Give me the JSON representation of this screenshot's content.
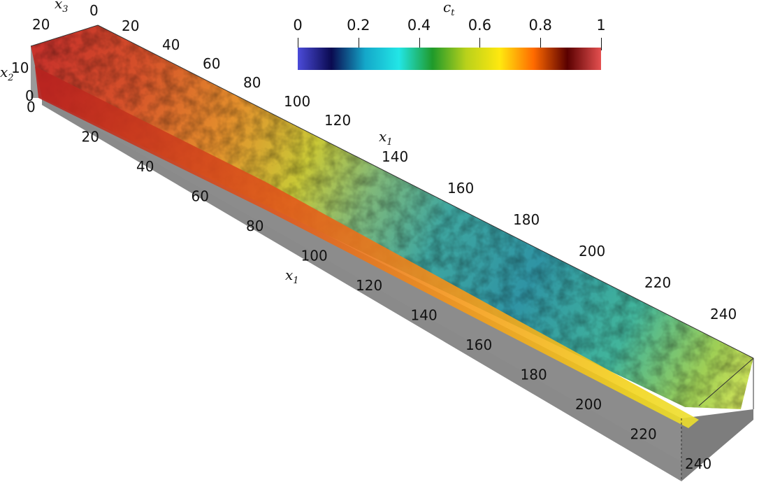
{
  "colorbar": {
    "title": "c",
    "title_sub": "t",
    "ticks": [
      "0",
      "0.2",
      "0.4",
      "0.6",
      "0.8",
      "1"
    ],
    "stops": [
      "#4b4bd9",
      "#0a0a50",
      "#14a7c9",
      "#22e6e6",
      "#1f9a2a",
      "#b9d11b",
      "#ffe80f",
      "#ff6a00",
      "#5a0000",
      "#e55050"
    ]
  },
  "axes": {
    "x1_top": {
      "name": "x",
      "sub": "1",
      "ticks": [
        "140",
        "160",
        "180",
        "200",
        "220",
        "240"
      ]
    },
    "x1_front": {
      "name": "x",
      "sub": "1",
      "ticks": [
        "0",
        "20",
        "40",
        "60",
        "80",
        "100",
        "120",
        "140",
        "160",
        "180",
        "200",
        "220",
        "240"
      ]
    },
    "x2": {
      "name": "x",
      "sub": "2",
      "ticks": [
        "10",
        "0"
      ]
    },
    "x3": {
      "name": "x",
      "sub": "3",
      "ticks": [
        "20",
        "0"
      ]
    },
    "top_x1_ticks": [
      "20",
      "40",
      "60",
      "80",
      "100",
      "120"
    ]
  }
}
